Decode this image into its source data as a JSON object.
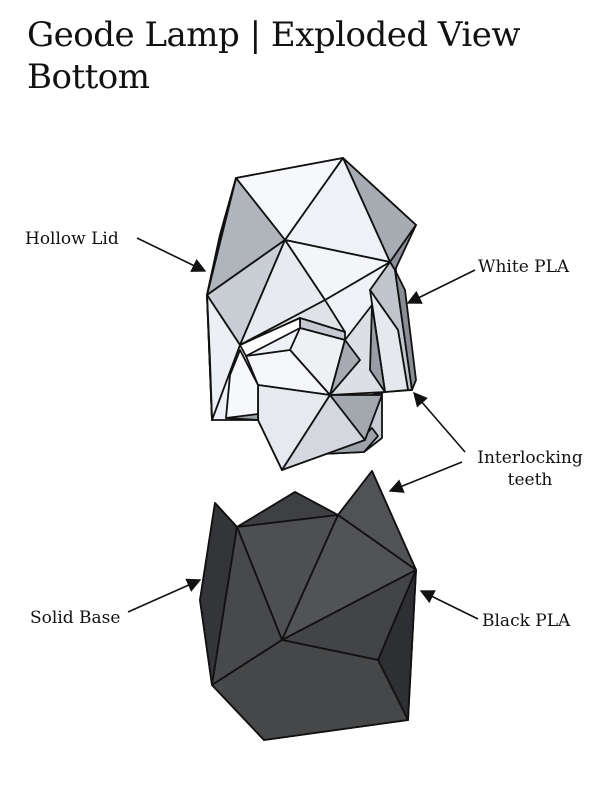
{
  "title": {
    "line1": "Geode Lamp | Exploded View",
    "line2": "Bottom"
  },
  "labels": {
    "hollow_lid": "Hollow Lid",
    "white_pla": "White PLA",
    "interlocking_teeth_1": "Interlocking",
    "interlocking_teeth_2": "teeth",
    "solid_base": "Solid Base",
    "black_pla": "Black PLA"
  },
  "colors": {
    "lid": "#ffffff",
    "base": "#4a4b4e",
    "outline": "#111111"
  }
}
